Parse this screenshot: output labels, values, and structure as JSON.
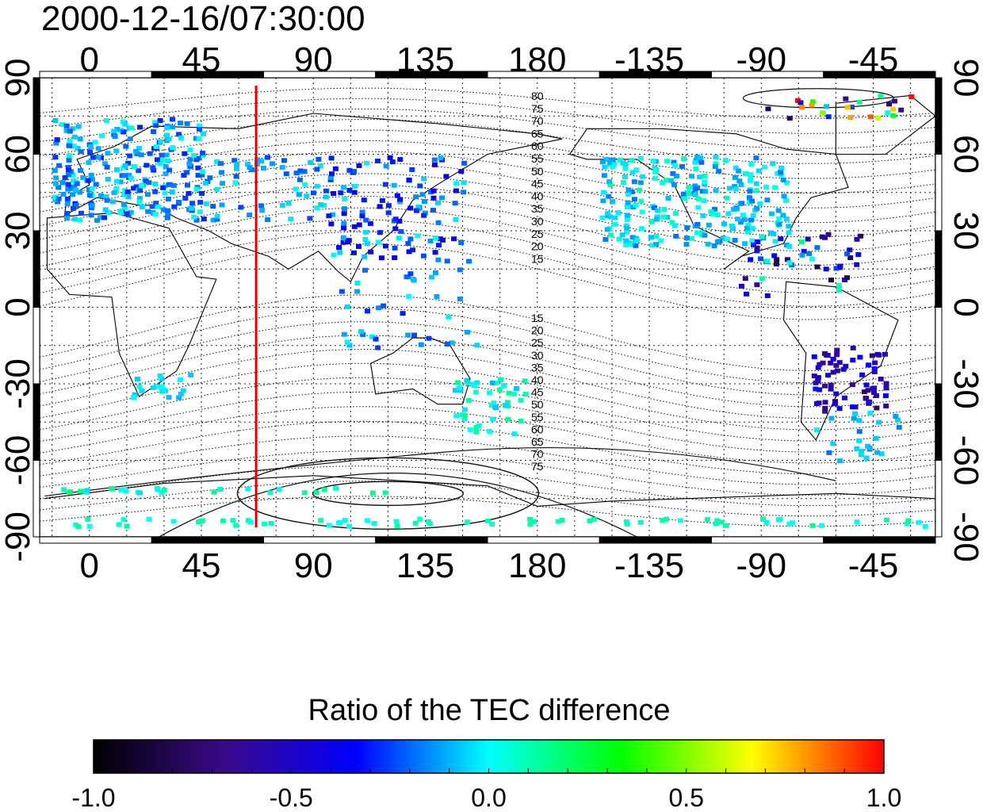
{
  "chart_data": {
    "type": "heatmap",
    "title": "2000-12-16/07:30:00",
    "colorbar_title": "Ratio of the TEC difference",
    "x_ticks_bottom": [
      "0",
      "45",
      "90",
      "135",
      "180",
      "-135",
      "-90",
      "-45"
    ],
    "x_ticks_top": [
      "0",
      "45",
      "90",
      "135",
      "180",
      "-135",
      "-90",
      "-45"
    ],
    "x_tick_values": [
      0,
      45,
      90,
      135,
      180,
      225,
      270,
      315
    ],
    "y_ticks_left": [
      "90",
      "60",
      "30",
      "0",
      "-30",
      "-60",
      "-90"
    ],
    "y_ticks_right": [
      "90",
      "60",
      "30",
      "0",
      "-30",
      "-60",
      "-90"
    ],
    "y_tick_values": [
      90,
      60,
      30,
      0,
      -30,
      -60,
      -90
    ],
    "xlim": [
      -20,
      340
    ],
    "ylim": [
      -90,
      90
    ],
    "grid": true,
    "colorbar_ticks": [
      "-1.0",
      "-0.5",
      "0.0",
      "0.5",
      "1.0"
    ],
    "colorbar_range": [
      -1.0,
      1.0
    ],
    "colorbar_colors": [
      "#000000",
      "#3a0a8a",
      "#0000ff",
      "#00ffff",
      "#00ff00",
      "#ffff00",
      "#ff0000"
    ],
    "vertical_marker_longitude": 67,
    "marker_color": "#dd0000",
    "contour_labels_north": [
      "80",
      "75",
      "70",
      "65",
      "60",
      "55",
      "50",
      "45",
      "40",
      "35",
      "30",
      "25",
      "20",
      "15"
    ],
    "contour_labels_south": [
      "15",
      "20",
      "25",
      "30",
      "35",
      "40",
      "45",
      "50",
      "55",
      "60",
      "65",
      "70",
      "75"
    ],
    "contour_label_longitude": 180
  }
}
